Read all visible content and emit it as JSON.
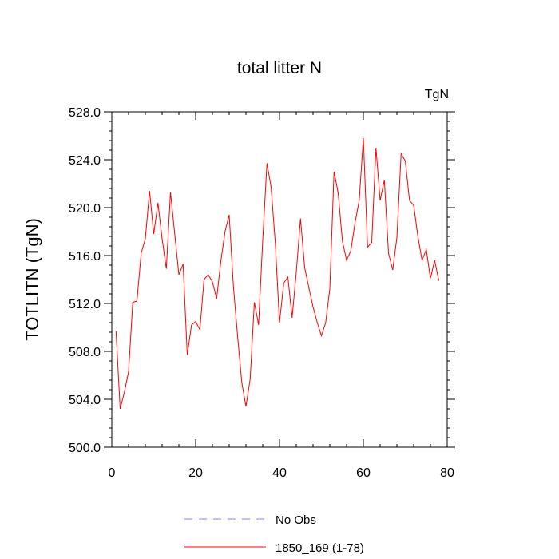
{
  "chart_data": {
    "type": "line",
    "title": "total litter N",
    "units_label": "TgN",
    "ylabel": "TOTLITN  (TgN)",
    "xlabel": "",
    "xlim": [
      0,
      80
    ],
    "ylim": [
      500,
      528
    ],
    "x_ticks": [
      0,
      20,
      40,
      60,
      80
    ],
    "x_tick_labels": [
      "0",
      "20",
      "40",
      "60",
      "80"
    ],
    "y_ticks": [
      500,
      504,
      508,
      512,
      516,
      520,
      524,
      528
    ],
    "y_tick_labels": [
      "500.0",
      "504.0",
      "508.0",
      "512.0",
      "516.0",
      "520.0",
      "524.0",
      "528.0"
    ],
    "grid": false,
    "legend_position": "bottom",
    "legend": [
      {
        "label": "No Obs",
        "color": "#8080ff",
        "dash": "dashed"
      },
      {
        "label": "1850_169 (1-78)",
        "color": "#ff0000",
        "dash": "solid"
      }
    ],
    "series": [
      {
        "name": "1850_169 (1-78)",
        "color": "#ff0000",
        "x": [
          1,
          2,
          3,
          4,
          5,
          6,
          7,
          8,
          9,
          10,
          11,
          12,
          13,
          14,
          15,
          16,
          17,
          18,
          19,
          20,
          21,
          22,
          23,
          24,
          25,
          26,
          27,
          28,
          29,
          30,
          31,
          32,
          33,
          34,
          35,
          36,
          37,
          38,
          39,
          40,
          41,
          42,
          43,
          44,
          45,
          46,
          47,
          48,
          49,
          50,
          51,
          52,
          53,
          54,
          55,
          56,
          57,
          58,
          59,
          60,
          61,
          62,
          63,
          64,
          65,
          66,
          67,
          68,
          69,
          70,
          71,
          72,
          73,
          74,
          75,
          76,
          77,
          78
        ],
        "values": [
          509.7,
          503.2,
          504.6,
          506.3,
          512.1,
          512.2,
          516.2,
          517.4,
          521.4,
          517.8,
          520.4,
          517.4,
          514.9,
          521.3,
          517.8,
          514.4,
          515.3,
          507.7,
          510.2,
          510.5,
          509.8,
          514.0,
          514.4,
          513.8,
          512.4,
          515.5,
          518.0,
          519.4,
          513.4,
          509.3,
          505.4,
          503.4,
          505.7,
          512.1,
          510.2,
          517.3,
          523.7,
          521.7,
          517.0,
          510.4,
          513.7,
          514.2,
          510.8,
          514.6,
          519.1,
          515.0,
          513.3,
          511.7,
          510.4,
          509.3,
          510.4,
          513.2,
          523.0,
          521.2,
          517.2,
          515.6,
          516.4,
          518.7,
          520.6,
          525.8,
          516.7,
          517.1,
          525.0,
          520.6,
          522.3,
          516.2,
          514.8,
          517.5,
          524.5,
          523.9,
          520.6,
          520.2,
          517.6,
          515.6,
          516.5,
          514.1,
          515.6,
          513.9
        ]
      }
    ]
  }
}
